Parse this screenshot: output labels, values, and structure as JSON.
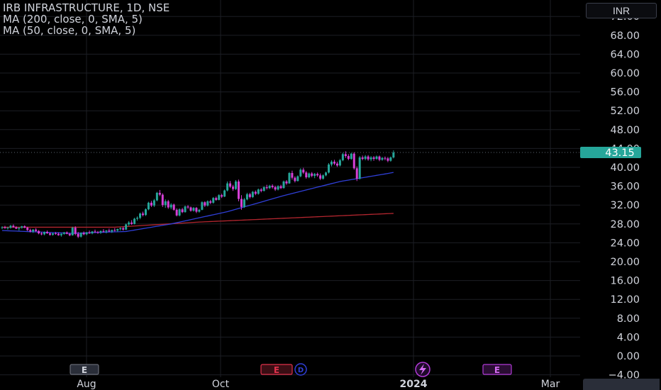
{
  "legend": {
    "title": "IRB INFRASTRUCTURE, 1D, NSE",
    "ma200": "MA (200, close, 0, SMA, 5)",
    "ma50": "MA (50, close, 0, SMA, 5)"
  },
  "currency": "INR",
  "last_price": "43.15",
  "colors": {
    "background": "#000000",
    "up": "#26a69a",
    "down": "#d63fd6",
    "ma50": "#2f3fd6",
    "ma200": "#b3262f",
    "price_label": "#26a69a",
    "grid": "#1c1e24",
    "axis_text": "#d1d4dc"
  },
  "chart_data": {
    "type": "candlestick",
    "y_axis": {
      "ticks": [
        "72.00",
        "68.00",
        "64.00",
        "60.00",
        "56.00",
        "52.00",
        "48.00",
        "44.00",
        "40.00",
        "36.00",
        "32.00",
        "28.00",
        "24.00",
        "20.00",
        "16.00",
        "12.00",
        "8.00",
        "4.00",
        "0.00",
        "−4.00"
      ],
      "ylim": [
        -4,
        73
      ]
    },
    "x_axis": {
      "ticks": [
        "Aug",
        "Oct",
        "2024",
        "Mar"
      ]
    },
    "event_markers": [
      {
        "type": "E",
        "style": "earnings",
        "month": "Aug"
      },
      {
        "type": "E",
        "style": "earnings-dividend",
        "month": "Oct-Nov"
      },
      {
        "type": "split",
        "style": "flash",
        "month": "Jan"
      },
      {
        "type": "E",
        "style": "earnings",
        "month": "Feb"
      }
    ],
    "last_price": 43.15,
    "candles": [
      [
        27.2,
        27.5,
        26.9,
        27.3
      ],
      [
        27.3,
        27.6,
        27.0,
        27.1
      ],
      [
        27.1,
        27.4,
        26.8,
        27.2
      ],
      [
        27.2,
        27.8,
        27.0,
        27.6
      ],
      [
        27.6,
        27.9,
        27.2,
        27.3
      ],
      [
        27.3,
        27.5,
        26.9,
        27.0
      ],
      [
        27.0,
        27.3,
        26.6,
        27.2
      ],
      [
        27.2,
        27.6,
        27.0,
        27.5
      ],
      [
        27.5,
        27.7,
        27.1,
        27.2
      ],
      [
        27.2,
        27.4,
        26.5,
        26.7
      ],
      [
        26.7,
        27.0,
        26.2,
        26.4
      ],
      [
        26.4,
        26.9,
        26.1,
        26.8
      ],
      [
        26.8,
        27.1,
        26.3,
        26.5
      ],
      [
        26.5,
        26.7,
        25.8,
        26.0
      ],
      [
        26.0,
        26.3,
        25.6,
        25.8
      ],
      [
        25.8,
        26.4,
        25.6,
        26.3
      ],
      [
        26.3,
        26.6,
        25.9,
        26.0
      ],
      [
        26.0,
        26.2,
        25.5,
        25.7
      ],
      [
        25.7,
        26.1,
        25.5,
        26.0
      ],
      [
        26.0,
        26.3,
        25.7,
        25.9
      ],
      [
        25.9,
        26.2,
        25.5,
        25.6
      ],
      [
        25.6,
        26.0,
        25.3,
        25.9
      ],
      [
        25.9,
        26.3,
        25.7,
        26.2
      ],
      [
        26.2,
        26.4,
        25.8,
        25.9
      ],
      [
        25.9,
        26.1,
        25.4,
        25.6
      ],
      [
        25.6,
        27.4,
        25.5,
        27.2
      ],
      [
        27.2,
        27.5,
        25.6,
        25.9
      ],
      [
        25.9,
        26.3,
        25.0,
        25.3
      ],
      [
        25.3,
        26.2,
        25.1,
        26.1
      ],
      [
        26.1,
        26.4,
        25.6,
        25.8
      ],
      [
        25.8,
        26.3,
        25.6,
        26.2
      ],
      [
        26.2,
        26.6,
        25.9,
        26.0
      ],
      [
        26.0,
        26.5,
        25.8,
        26.4
      ],
      [
        26.4,
        26.8,
        26.1,
        26.3
      ],
      [
        26.3,
        26.5,
        25.9,
        26.2
      ],
      [
        26.2,
        26.6,
        25.9,
        26.5
      ],
      [
        26.5,
        26.9,
        26.2,
        26.4
      ],
      [
        26.4,
        26.7,
        26.0,
        26.6
      ],
      [
        26.6,
        27.0,
        26.3,
        26.4
      ],
      [
        26.4,
        26.8,
        26.1,
        26.7
      ],
      [
        26.7,
        27.1,
        26.4,
        26.6
      ],
      [
        26.6,
        27.0,
        26.3,
        26.9
      ],
      [
        26.9,
        27.3,
        26.6,
        27.1
      ],
      [
        27.1,
        27.4,
        26.6,
        26.8
      ],
      [
        26.8,
        28.1,
        26.7,
        27.9
      ],
      [
        27.9,
        28.6,
        27.6,
        28.3
      ],
      [
        28.3,
        28.8,
        27.8,
        28.0
      ],
      [
        28.0,
        29.3,
        27.9,
        29.1
      ],
      [
        29.1,
        29.6,
        28.7,
        29.3
      ],
      [
        29.3,
        30.4,
        29.0,
        30.2
      ],
      [
        30.2,
        30.6,
        29.6,
        29.9
      ],
      [
        29.9,
        31.3,
        29.7,
        31.1
      ],
      [
        31.1,
        32.7,
        30.9,
        32.5
      ],
      [
        32.5,
        32.9,
        31.6,
        31.9
      ],
      [
        31.9,
        33.3,
        31.6,
        33.0
      ],
      [
        33.0,
        34.8,
        32.8,
        34.6
      ],
      [
        34.6,
        35.2,
        33.9,
        34.2
      ],
      [
        34.2,
        34.5,
        31.6,
        32.0
      ],
      [
        32.0,
        33.2,
        31.4,
        32.8
      ],
      [
        32.8,
        33.1,
        31.2,
        31.5
      ],
      [
        31.5,
        32.4,
        31.1,
        32.1
      ],
      [
        32.1,
        32.3,
        30.8,
        31.0
      ],
      [
        31.0,
        31.3,
        29.6,
        29.8
      ],
      [
        29.8,
        31.3,
        29.6,
        31.1
      ],
      [
        31.1,
        31.4,
        30.3,
        30.5
      ],
      [
        30.5,
        31.9,
        30.4,
        31.7
      ],
      [
        31.7,
        32.0,
        31.2,
        31.5
      ],
      [
        31.5,
        31.7,
        30.6,
        30.8
      ],
      [
        30.8,
        31.6,
        30.6,
        31.4
      ],
      [
        31.4,
        31.6,
        30.3,
        30.6
      ],
      [
        30.6,
        31.2,
        30.4,
        31.0
      ],
      [
        31.0,
        32.8,
        30.9,
        32.6
      ],
      [
        32.6,
        32.8,
        31.6,
        31.9
      ],
      [
        31.9,
        33.0,
        31.7,
        32.8
      ],
      [
        32.8,
        33.1,
        32.2,
        32.5
      ],
      [
        32.5,
        33.7,
        32.3,
        33.5
      ],
      [
        33.5,
        33.8,
        32.9,
        33.1
      ],
      [
        33.1,
        34.3,
        33.0,
        34.1
      ],
      [
        34.1,
        34.4,
        33.5,
        33.8
      ],
      [
        33.8,
        35.3,
        33.7,
        35.1
      ],
      [
        35.1,
        37.0,
        34.9,
        36.6
      ],
      [
        36.6,
        37.1,
        35.6,
        35.9
      ],
      [
        35.9,
        36.3,
        35.0,
        35.4
      ],
      [
        35.4,
        37.3,
        35.2,
        37.0
      ],
      [
        37.0,
        37.4,
        32.8,
        33.3
      ],
      [
        33.3,
        34.1,
        31.0,
        31.6
      ],
      [
        31.6,
        33.5,
        31.4,
        33.2
      ],
      [
        33.2,
        34.6,
        33.0,
        34.3
      ],
      [
        34.3,
        34.6,
        33.4,
        33.7
      ],
      [
        33.7,
        35.0,
        33.5,
        34.8
      ],
      [
        34.8,
        35.1,
        34.1,
        34.4
      ],
      [
        34.4,
        35.5,
        34.2,
        35.3
      ],
      [
        35.3,
        35.6,
        34.7,
        35.0
      ],
      [
        35.0,
        36.0,
        34.9,
        35.8
      ],
      [
        35.8,
        36.3,
        35.3,
        35.6
      ],
      [
        35.6,
        36.3,
        35.4,
        36.1
      ],
      [
        36.1,
        36.4,
        35.5,
        35.8
      ],
      [
        35.8,
        36.1,
        35.0,
        35.3
      ],
      [
        35.3,
        36.2,
        35.1,
        36.0
      ],
      [
        36.0,
        36.3,
        35.4,
        35.6
      ],
      [
        35.6,
        37.2,
        35.5,
        37.0
      ],
      [
        37.0,
        37.3,
        36.3,
        36.6
      ],
      [
        36.6,
        39.0,
        36.5,
        38.8
      ],
      [
        38.8,
        39.3,
        37.4,
        37.8
      ],
      [
        37.8,
        38.1,
        36.8,
        37.1
      ],
      [
        37.1,
        38.3,
        37.0,
        38.1
      ],
      [
        38.1,
        39.8,
        37.9,
        39.5
      ],
      [
        39.5,
        39.9,
        38.6,
        38.9
      ],
      [
        38.9,
        39.2,
        37.6,
        37.9
      ],
      [
        37.9,
        38.9,
        37.7,
        38.7
      ],
      [
        38.7,
        39.0,
        37.9,
        38.2
      ],
      [
        38.2,
        38.8,
        37.7,
        38.6
      ],
      [
        38.6,
        38.9,
        38.0,
        38.3
      ],
      [
        38.3,
        38.7,
        37.3,
        37.6
      ],
      [
        37.6,
        38.5,
        37.4,
        38.3
      ],
      [
        38.3,
        39.1,
        38.1,
        38.9
      ],
      [
        38.9,
        40.9,
        38.7,
        40.6
      ],
      [
        40.6,
        41.5,
        40.2,
        41.2
      ],
      [
        41.2,
        41.6,
        40.5,
        40.8
      ],
      [
        40.8,
        41.2,
        40.1,
        40.4
      ],
      [
        40.4,
        41.8,
        40.2,
        41.5
      ],
      [
        41.5,
        43.1,
        41.3,
        42.8
      ],
      [
        42.8,
        43.4,
        42.0,
        42.4
      ],
      [
        42.4,
        42.8,
        41.5,
        41.8
      ],
      [
        41.8,
        43.1,
        41.6,
        42.9
      ],
      [
        42.9,
        43.2,
        39.5,
        39.8
      ],
      [
        39.8,
        40.2,
        37.1,
        37.6
      ],
      [
        37.6,
        42.4,
        37.4,
        42.1
      ],
      [
        42.1,
        42.5,
        41.5,
        41.8
      ],
      [
        41.8,
        42.6,
        41.5,
        42.3
      ],
      [
        42.3,
        42.6,
        41.4,
        41.7
      ],
      [
        41.7,
        42.4,
        41.3,
        42.1
      ],
      [
        42.1,
        42.4,
        41.4,
        41.8
      ],
      [
        41.8,
        42.5,
        41.6,
        42.3
      ],
      [
        42.3,
        42.5,
        41.3,
        41.6
      ],
      [
        41.6,
        42.2,
        41.4,
        42.0
      ],
      [
        42.0,
        42.3,
        41.5,
        41.9
      ],
      [
        41.9,
        42.2,
        41.1,
        41.4
      ],
      [
        41.4,
        42.3,
        41.2,
        42.1
      ],
      [
        42.1,
        43.6,
        41.9,
        43.15
      ]
    ],
    "ma50_anchors": [
      [
        0,
        26.6
      ],
      [
        25,
        26.0
      ],
      [
        44,
        26.4
      ],
      [
        60,
        28.0
      ],
      [
        80,
        30.6
      ],
      [
        100,
        34.0
      ],
      [
        120,
        37.0
      ],
      [
        136,
        38.6
      ],
      [
        149,
        40.0
      ]
    ],
    "ma200_anchors": [
      [
        0,
        27.3
      ],
      [
        40,
        27.3
      ],
      [
        70,
        28.4
      ],
      [
        100,
        29.2
      ],
      [
        130,
        30.0
      ],
      [
        149,
        30.5
      ]
    ]
  }
}
